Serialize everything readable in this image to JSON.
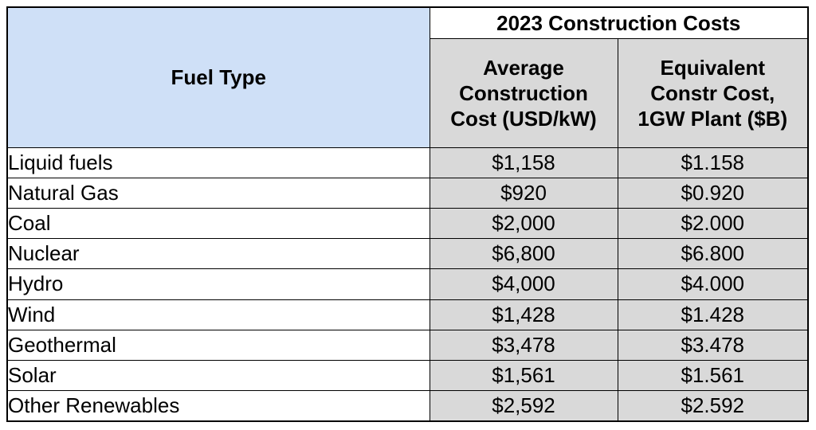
{
  "header": {
    "fuel_type": "Fuel Type",
    "group": "2023 Construction Costs",
    "col_avg": "Average Construction Cost (USD/kW)",
    "col_equiv": "Equivalent Constr Cost, 1GW Plant ($B)"
  },
  "rows": [
    {
      "fuel": "Liquid fuels",
      "avg": "$1,158",
      "equiv": "$1.158"
    },
    {
      "fuel": "Natural Gas",
      "avg": "$920",
      "equiv": "$0.920"
    },
    {
      "fuel": "Coal",
      "avg": "$2,000",
      "equiv": "$2.000"
    },
    {
      "fuel": "Nuclear",
      "avg": "$6,800",
      "equiv": "$6.800"
    },
    {
      "fuel": "Hydro",
      "avg": "$4,000",
      "equiv": "$4.000"
    },
    {
      "fuel": "Wind",
      "avg": "$1,428",
      "equiv": "$1.428"
    },
    {
      "fuel": "Geothermal",
      "avg": "$3,478",
      "equiv": "$3.478"
    },
    {
      "fuel": "Solar",
      "avg": "$1,561",
      "equiv": "$1.561"
    },
    {
      "fuel": "Other Renewables",
      "avg": "$2,592",
      "equiv": "$2.592"
    }
  ]
}
